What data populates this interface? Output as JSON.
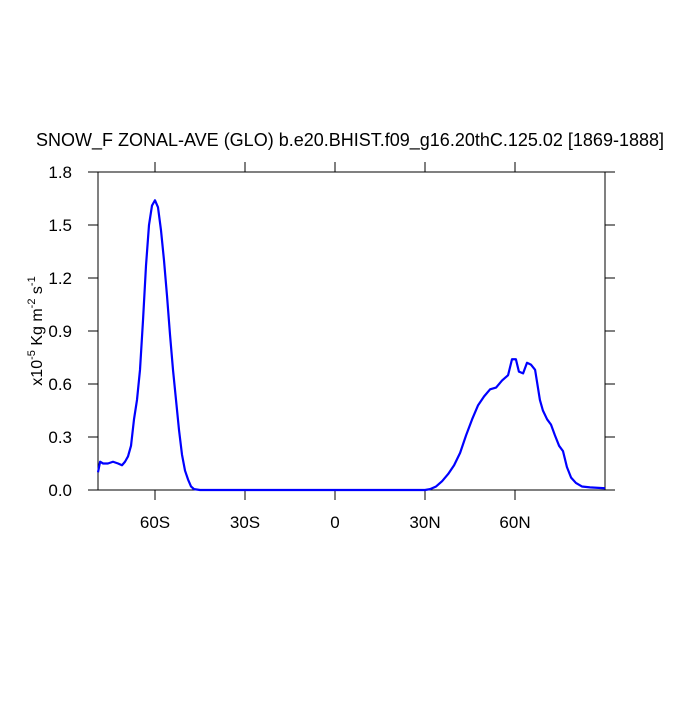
{
  "chart_data": {
    "type": "line",
    "title": "SNOW_F ZONAL-AVE (GLO) b.e20.BHIST.f09_g16.20thC.125.02 [1869-1888]",
    "ylabel_parts": [
      "x10",
      "-5",
      " Kg m",
      "-2",
      " s",
      "-1"
    ],
    "x": [
      -79,
      -78.3,
      -77.3,
      -75.7,
      -74,
      -72.3,
      -71,
      -70,
      -69,
      -68,
      -67,
      -66,
      -65,
      -64,
      -63,
      -62,
      -61,
      -60,
      -59,
      -58,
      -57,
      -56,
      -55,
      -54,
      -53,
      -52,
      -51,
      -50,
      -49,
      -48,
      -47,
      -45,
      0,
      30,
      31.7,
      33.7,
      35.7,
      37.7,
      39.7,
      41.7,
      43.7,
      45.7,
      47.7,
      49.7,
      51.7,
      53.7,
      55.7,
      57.7,
      59,
      60.3,
      61.3,
      62.7,
      64,
      65.3,
      66.7,
      68.3,
      69.3,
      70.7,
      72,
      73.3,
      74.7,
      76,
      77.3,
      78.7,
      80.3,
      82.3,
      85,
      90
    ],
    "values": [
      0.1,
      0.16,
      0.15,
      0.15,
      0.16,
      0.15,
      0.14,
      0.16,
      0.19,
      0.25,
      0.4,
      0.51,
      0.68,
      0.96,
      1.27,
      1.5,
      1.61,
      1.64,
      1.6,
      1.47,
      1.3,
      1.1,
      0.88,
      0.68,
      0.51,
      0.34,
      0.2,
      0.11,
      0.06,
      0.02,
      0.005,
      0,
      0,
      0,
      0.005,
      0.02,
      0.05,
      0.09,
      0.14,
      0.21,
      0.31,
      0.4,
      0.48,
      0.53,
      0.57,
      0.58,
      0.62,
      0.65,
      0.74,
      0.74,
      0.67,
      0.66,
      0.72,
      0.71,
      0.68,
      0.51,
      0.45,
      0.4,
      0.37,
      0.31,
      0.25,
      0.22,
      0.13,
      0.07,
      0.04,
      0.02,
      0.015,
      0.01
    ],
    "color": "#0000ff",
    "xlim": [
      -79,
      90
    ],
    "xticks": [
      {
        "value": -60,
        "label": "60S"
      },
      {
        "value": -30,
        "label": "30S"
      },
      0,
      {
        "value": 30,
        "label": "30N"
      },
      {
        "value": 60,
        "label": "60N"
      }
    ],
    "ylim": [
      0,
      1.8
    ],
    "yticks": [
      {
        "value": 0,
        "label": "0.0"
      },
      0.3,
      0.6,
      0.9,
      1.2,
      1.5,
      1.8
    ]
  }
}
